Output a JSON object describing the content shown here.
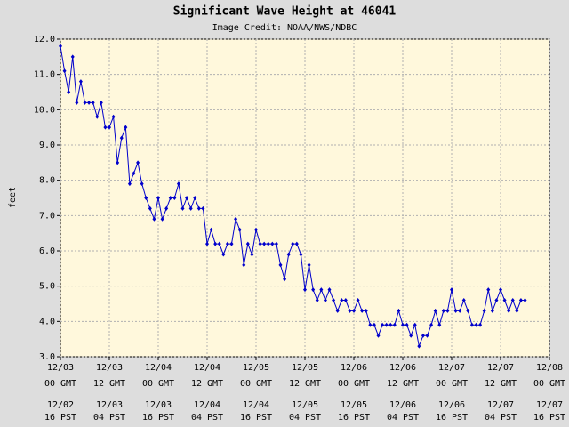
{
  "chart_data": {
    "type": "line",
    "title": "Significant Wave Height at 46041",
    "subtitle": "Image Credit: NOAA/NWS/NDBC",
    "y_label": "feet",
    "x": [
      0,
      1,
      2,
      3,
      4,
      5,
      6,
      7,
      8,
      9,
      10,
      11,
      12,
      13,
      14,
      15,
      16,
      17,
      18,
      19,
      20,
      21,
      22,
      23,
      24,
      25,
      26,
      27,
      28,
      29,
      30,
      31,
      32,
      33,
      34,
      35,
      36,
      37,
      38,
      39,
      40,
      41,
      42,
      43,
      44,
      45,
      46,
      47,
      48,
      49,
      50,
      51,
      52,
      53,
      54,
      55,
      56,
      57,
      58,
      59,
      60,
      61,
      62,
      63,
      64,
      65,
      66,
      67,
      68,
      69,
      70,
      71,
      72,
      73,
      74,
      75,
      76,
      77,
      78,
      79,
      80,
      81,
      82,
      83,
      84,
      85,
      86,
      87,
      88,
      89,
      90,
      91,
      92,
      93,
      94,
      95,
      96,
      97,
      98,
      99,
      100,
      101,
      102,
      103,
      104,
      105,
      106,
      107,
      108,
      109,
      110,
      111,
      112,
      113,
      114
    ],
    "series": [
      {
        "name": "Significant Wave Height",
        "color": "#0000cc",
        "values": [
          11.8,
          11.1,
          10.5,
          11.5,
          10.2,
          10.8,
          10.2,
          10.2,
          10.2,
          9.8,
          10.2,
          9.5,
          9.5,
          9.8,
          8.5,
          9.2,
          9.5,
          7.9,
          8.2,
          8.5,
          7.9,
          7.5,
          7.2,
          6.9,
          7.5,
          6.9,
          7.2,
          7.5,
          7.5,
          7.9,
          7.2,
          7.5,
          7.2,
          7.5,
          7.2,
          7.2,
          6.2,
          6.6,
          6.2,
          6.2,
          5.9,
          6.2,
          6.2,
          6.9,
          6.6,
          5.6,
          6.2,
          5.9,
          6.6,
          6.2,
          6.2,
          6.2,
          6.2,
          6.2,
          5.6,
          5.2,
          5.9,
          6.2,
          6.2,
          5.9,
          4.9,
          5.6,
          4.9,
          4.6,
          4.9,
          4.6,
          4.9,
          4.6,
          4.3,
          4.6,
          4.6,
          4.3,
          4.3,
          4.6,
          4.3,
          4.3,
          3.9,
          3.9,
          3.6,
          3.9,
          3.9,
          3.9,
          3.9,
          4.3,
          3.9,
          3.9,
          3.6,
          3.9,
          3.3,
          3.6,
          3.6,
          3.9,
          4.3,
          3.9,
          4.3,
          4.3,
          4.9,
          4.3,
          4.3,
          4.6,
          4.3,
          3.9,
          3.9,
          3.9,
          4.3,
          4.9,
          4.3,
          4.6,
          4.9,
          4.6,
          4.3,
          4.6,
          4.3,
          4.6,
          4.6
        ]
      }
    ],
    "xlim": [
      0,
      120
    ],
    "xticks": [
      {
        "value": 0,
        "label": "12/03"
      },
      {
        "value": 12,
        "label": "12/03"
      },
      {
        "value": 24,
        "label": "12/04"
      },
      {
        "value": 36,
        "label": "12/04"
      },
      {
        "value": 48,
        "label": "12/05"
      },
      {
        "value": 60,
        "label": "12/05"
      },
      {
        "value": 72,
        "label": "12/06"
      },
      {
        "value": 84,
        "label": "12/06"
      },
      {
        "value": 96,
        "label": "12/07"
      },
      {
        "value": 108,
        "label": "12/07"
      },
      {
        "value": 120,
        "label": "12/08"
      }
    ],
    "xtick_times": [
      "00 GMT",
      "12 GMT",
      "00 GMT",
      "12 GMT",
      "00 GMT",
      "12 GMT",
      "00 GMT",
      "12 GMT",
      "00 GMT",
      "12 GMT",
      "00 GMT"
    ],
    "xtick_local_dates": [
      "12/02",
      "12/03",
      "12/03",
      "12/04",
      "12/04",
      "12/05",
      "12/05",
      "12/06",
      "12/06",
      "12/07",
      "12/07"
    ],
    "xtick_local_times": [
      "16 PST",
      "04 PST",
      "16 PST",
      "04 PST",
      "16 PST",
      "04 PST",
      "16 PST",
      "04 PST",
      "16 PST",
      "04 PST",
      "16 PST"
    ],
    "ylim": [
      3,
      12
    ],
    "yticks": [
      {
        "value": 3,
        "label": "3.0"
      },
      {
        "value": 4,
        "label": "4.0"
      },
      {
        "value": 5,
        "label": "5.0"
      },
      {
        "value": 6,
        "label": "6.0"
      },
      {
        "value": 7,
        "label": "7.0"
      },
      {
        "value": 8,
        "label": "8.0"
      },
      {
        "value": 9,
        "label": "9.0"
      },
      {
        "value": 10,
        "label": "10.0"
      },
      {
        "value": 11,
        "label": "11.0"
      },
      {
        "value": 12,
        "label": "12.0"
      }
    ],
    "grid": true,
    "background": "#fff8dc"
  }
}
